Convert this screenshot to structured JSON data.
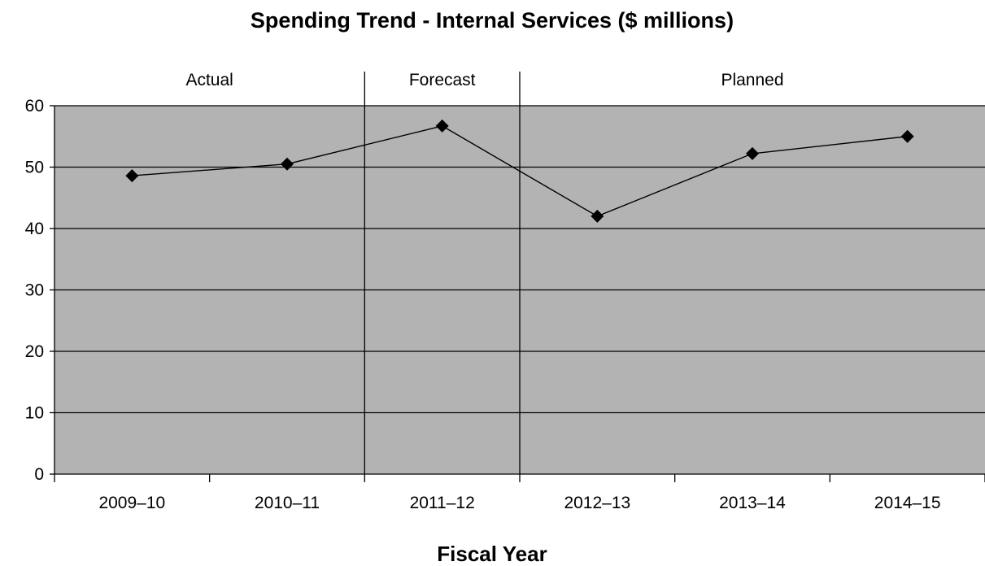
{
  "chart_data": {
    "type": "line",
    "title": "Spending Trend - Internal Services ($ millions)",
    "xlabel": "Fiscal Year",
    "ylabel": "",
    "categories": [
      "2009–10",
      "2010–11",
      "2011–12",
      "2012–13",
      "2013–14",
      "2014–15"
    ],
    "series": [
      {
        "values": [
          48.6,
          50.5,
          56.7,
          42.0,
          52.2,
          55.0
        ]
      }
    ],
    "ylim": [
      0,
      60
    ],
    "yticks": [
      "0",
      "10",
      "20",
      "30",
      "40",
      "50",
      "60"
    ],
    "grid": true,
    "legend": "none",
    "periods": [
      {
        "label": "Actual",
        "from": 0,
        "to": 1
      },
      {
        "label": "Forecast",
        "from": 2,
        "to": 2
      },
      {
        "label": "Planned",
        "from": 3,
        "to": 5
      }
    ],
    "colors": {
      "plot_background": "#b3b3b3",
      "line": "#000000",
      "marker": "#000000",
      "grid": "#000000"
    },
    "marker": "diamond"
  }
}
